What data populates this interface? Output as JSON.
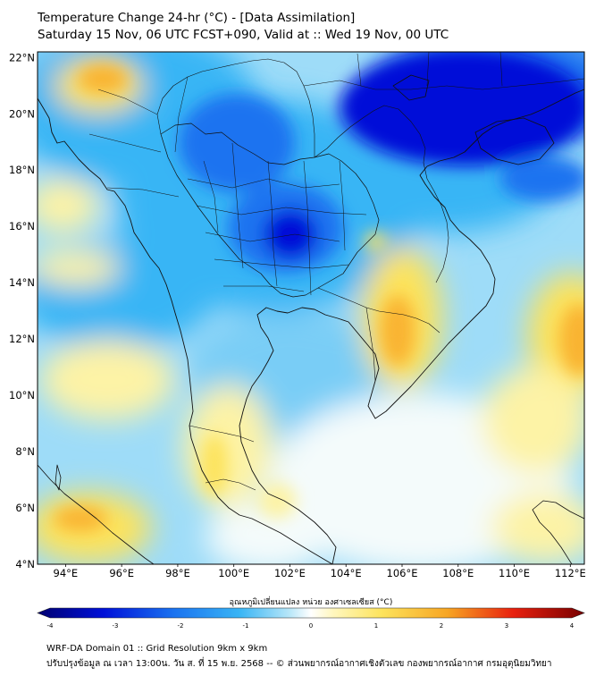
{
  "header": {
    "title_line1": "Temperature Change 24-hr (°C) - [Data Assimilation]",
    "title_line2": "Saturday 15 Nov, 06 UTC FCST+090, Valid at :: Wed 19 Nov, 00 UTC"
  },
  "map": {
    "extent": {
      "lon_min": 93,
      "lon_max": 112.5,
      "lat_min": 4,
      "lat_max": 22.2
    },
    "lon_ticks": [
      "94°E",
      "96°E",
      "98°E",
      "100°E",
      "102°E",
      "104°E",
      "106°E",
      "108°E",
      "110°E",
      "112°E"
    ],
    "lat_ticks": [
      "22°N",
      "20°N",
      "18°N",
      "16°N",
      "14°N",
      "12°N",
      "10°N",
      "8°N",
      "6°N",
      "4°N"
    ],
    "colors": {
      "strong_cool": "#0010d8",
      "cool": "#1a73f0",
      "mild_cool": "#39b5f5",
      "slight_cool": "#9edcf8",
      "neutral": "#f4fbfb",
      "slight_warm": "#fdf3a6",
      "warm": "#fde35c",
      "strong_warm": "#f9b430"
    }
  },
  "colorbar": {
    "label": "อุณหภูมิเปลี่ยนแปลง หน่วย องศาเซลเซียส (°C)",
    "vmin": -4,
    "vmax": 4,
    "ticks": [
      "-4",
      "-3",
      "-2",
      "-1",
      "0",
      "1",
      "2",
      "3",
      "4"
    ]
  },
  "footer": {
    "line1": "WRF-DA Domain 01 :: Grid Resolution 9km x 9km",
    "line2": "ปรับปรุงข้อมูล ณ เวลา 13:00น. วัน ส. ที่ 15 พ.ย. 2568 -- © ส่วนพยากรณ์อากาศเชิงตัวเลข กองพยากรณ์อากาศ กรมอุตุนิยมวิทยา"
  }
}
